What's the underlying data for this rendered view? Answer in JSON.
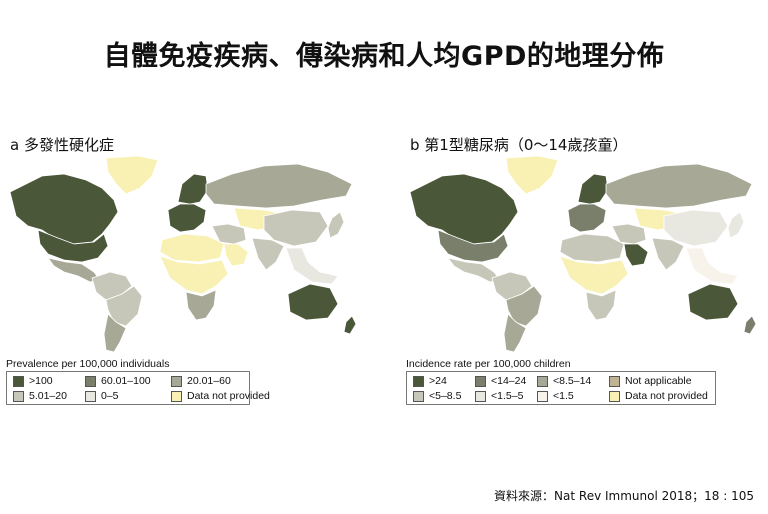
{
  "title": "自體免疫疾病、傳染病和人均GPD的地理分佈",
  "source": "資料來源：Nat Rev Immunol 2018；18 : 105",
  "colors": {
    "c1": "#4a5738",
    "c2": "#797f6a",
    "c3": "#a7a896",
    "c4": "#c7c7b9",
    "c5": "#e8e8e1",
    "c6": "#f7f3ea",
    "c7": "#bfb394",
    "c8": "#f8f1b3",
    "ocean": "#ffffff"
  },
  "panel_a": {
    "label": "a 多發性硬化症",
    "legend_title": "Prevalence per 100,000 individuals",
    "legend": [
      {
        "label": ">100",
        "color": "c1"
      },
      {
        "label": "60.01–100",
        "color": "c2"
      },
      {
        "label": "20.01–60",
        "color": "c3"
      },
      {
        "label": "5.01–20",
        "color": "c4"
      },
      {
        "label": "0–5",
        "color": "c5"
      },
      {
        "label": "Data not provided",
        "color": "c8"
      }
    ]
  },
  "panel_b": {
    "label": "b 第1型糖尿病（0～14歲孩童）",
    "legend_title": "Incidence rate per 100,000 children",
    "legend": [
      {
        "label": ">24",
        "color": "c1"
      },
      {
        "label": "<14–24",
        "color": "c2"
      },
      {
        "label": "<8.5–14",
        "color": "c3"
      },
      {
        "label": "Not applicable",
        "color": "c7"
      },
      {
        "label": "<5–8.5",
        "color": "c4"
      },
      {
        "label": "<1.5–5",
        "color": "c5"
      },
      {
        "label": "<1.5",
        "color": "c6"
      },
      {
        "label": "Data not provided",
        "color": "c8"
      }
    ]
  },
  "regions": [
    {
      "name": "north-america",
      "a": "c1",
      "b": "c1"
    },
    {
      "name": "usa",
      "a": "c1",
      "b": "c2"
    },
    {
      "name": "greenland",
      "a": "c8",
      "b": "c8"
    },
    {
      "name": "mexico-central-america",
      "a": "c3",
      "b": "c4"
    },
    {
      "name": "south-america-north",
      "a": "c4",
      "b": "c4"
    },
    {
      "name": "brazil",
      "a": "c4",
      "b": "c3"
    },
    {
      "name": "southern-cone",
      "a": "c3",
      "b": "c3"
    },
    {
      "name": "western-europe",
      "a": "c1",
      "b": "c2"
    },
    {
      "name": "scandinavia",
      "a": "c1",
      "b": "c1"
    },
    {
      "name": "russia",
      "a": "c3",
      "b": "c3"
    },
    {
      "name": "north-africa",
      "a": "c8",
      "b": "c4"
    },
    {
      "name": "sub-saharan-africa",
      "a": "c8",
      "b": "c8"
    },
    {
      "name": "southern-africa",
      "a": "c3",
      "b": "c4"
    },
    {
      "name": "middle-east",
      "a": "c4",
      "b": "c4"
    },
    {
      "name": "arabian-peninsula",
      "a": "c8",
      "b": "c1"
    },
    {
      "name": "central-asia",
      "a": "c8",
      "b": "c8"
    },
    {
      "name": "china",
      "a": "c4",
      "b": "c5"
    },
    {
      "name": "india",
      "a": "c4",
      "b": "c4"
    },
    {
      "name": "southeast-asia",
      "a": "c5",
      "b": "c6"
    },
    {
      "name": "japan",
      "a": "c4",
      "b": "c5"
    },
    {
      "name": "australia",
      "a": "c1",
      "b": "c1"
    },
    {
      "name": "new-zealand",
      "a": "c1",
      "b": "c2"
    }
  ]
}
